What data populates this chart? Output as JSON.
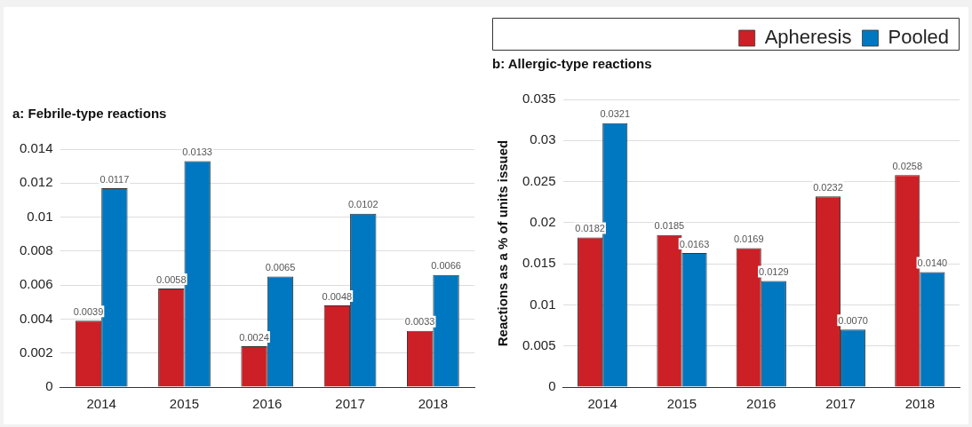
{
  "chart_data": [
    {
      "type": "bar",
      "title": "a: Febrile-type reactions",
      "categories": [
        "2014",
        "2015",
        "2016",
        "2017",
        "2018"
      ],
      "series": [
        {
          "color": "#cc1f26",
          "values": [
            0.0039,
            0.0058,
            0.0024,
            0.0048,
            0.0033
          ],
          "value_labels": [
            "0.0039",
            "0.0058",
            "0.0024",
            "0.0048",
            "0.0033"
          ]
        },
        {
          "color": "#0077c1",
          "values": [
            0.0117,
            0.0133,
            0.0065,
            0.0102,
            0.0066
          ],
          "value_labels": [
            "0.0117",
            "0.0133",
            "0.0065",
            "0.0102",
            "0.0066"
          ]
        }
      ],
      "ylim": [
        0,
        0.014
      ],
      "yticks": [
        0,
        0.002,
        0.004,
        0.006,
        0.008,
        0.01,
        0.012,
        0.014
      ],
      "grid": "y",
      "legend": false
    },
    {
      "type": "bar",
      "title": "b: Allergic-type reactions",
      "ylabel": "Reactions as a % of units issued",
      "categories": [
        "2014",
        "2015",
        "2016",
        "2017",
        "2018"
      ],
      "series": [
        {
          "name": "Apheresis",
          "color": "#cc1f26",
          "values": [
            0.0182,
            0.0185,
            0.0169,
            0.0232,
            0.0258
          ],
          "value_labels": [
            "0.0182",
            "0.0185",
            "0.0169",
            "0.0232",
            "0.0258"
          ]
        },
        {
          "name": "Pooled",
          "color": "#0077c1",
          "values": [
            0.0321,
            0.0163,
            0.0129,
            0.007,
            0.014
          ],
          "value_labels": [
            "0.0321",
            "0.0163",
            "0.0129",
            "0.0070",
            "0.0140"
          ]
        }
      ],
      "ylim": [
        0,
        0.035
      ],
      "yticks": [
        0,
        0.005,
        0.01,
        0.015,
        0.02,
        0.025,
        0.03,
        0.035
      ],
      "grid": "y",
      "legend": "top right"
    }
  ]
}
